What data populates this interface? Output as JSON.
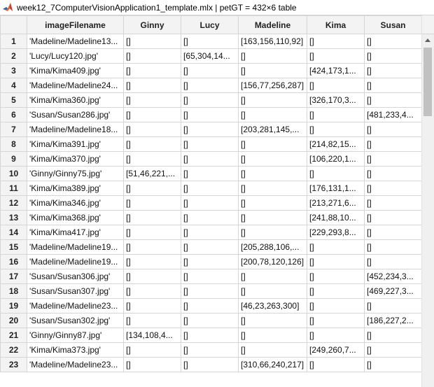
{
  "window": {
    "title": "week12_7ComputerVisionApplication1_template.mlx | petGT = 432×6 table"
  },
  "table": {
    "columns": [
      "imageFilename",
      "Ginny",
      "Lucy",
      "Madeline",
      "Kima",
      "Susan"
    ],
    "rows": [
      {
        "n": "1",
        "cells": [
          "'Madeline/Madeline13...",
          "[]",
          "[]",
          "[163,156,110,92]",
          "[]",
          "[]"
        ]
      },
      {
        "n": "2",
        "cells": [
          "'Lucy/Lucy120.jpg'",
          "[]",
          "[65,304,14...",
          "[]",
          "[]",
          "[]"
        ]
      },
      {
        "n": "3",
        "cells": [
          "'Kima/Kima409.jpg'",
          "[]",
          "[]",
          "[]",
          "[424,173,1...",
          "[]"
        ]
      },
      {
        "n": "4",
        "cells": [
          "'Madeline/Madeline24...",
          "[]",
          "[]",
          "[156,77,256,287]",
          "[]",
          "[]"
        ]
      },
      {
        "n": "5",
        "cells": [
          "'Kima/Kima360.jpg'",
          "[]",
          "[]",
          "[]",
          "[326,170,3...",
          "[]"
        ]
      },
      {
        "n": "6",
        "cells": [
          "'Susan/Susan286.jpg'",
          "[]",
          "[]",
          "[]",
          "[]",
          "[481,233,4..."
        ]
      },
      {
        "n": "7",
        "cells": [
          "'Madeline/Madeline18...",
          "[]",
          "[]",
          "[203,281,145,...",
          "[]",
          "[]"
        ]
      },
      {
        "n": "8",
        "cells": [
          "'Kima/Kima391.jpg'",
          "[]",
          "[]",
          "[]",
          "[214,82,15...",
          "[]"
        ]
      },
      {
        "n": "9",
        "cells": [
          "'Kima/Kima370.jpg'",
          "[]",
          "[]",
          "[]",
          "[106,220,1...",
          "[]"
        ]
      },
      {
        "n": "10",
        "cells": [
          "'Ginny/Ginny75.jpg'",
          "[51,46,221,...",
          "[]",
          "[]",
          "[]",
          "[]"
        ]
      },
      {
        "n": "11",
        "cells": [
          "'Kima/Kima389.jpg'",
          "[]",
          "[]",
          "[]",
          "[176,131,1...",
          "[]"
        ]
      },
      {
        "n": "12",
        "cells": [
          "'Kima/Kima346.jpg'",
          "[]",
          "[]",
          "[]",
          "[213,271,6...",
          "[]"
        ]
      },
      {
        "n": "13",
        "cells": [
          "'Kima/Kima368.jpg'",
          "[]",
          "[]",
          "[]",
          "[241,88,10...",
          "[]"
        ]
      },
      {
        "n": "14",
        "cells": [
          "'Kima/Kima417.jpg'",
          "[]",
          "[]",
          "[]",
          "[229,293,8...",
          "[]"
        ]
      },
      {
        "n": "15",
        "cells": [
          "'Madeline/Madeline19...",
          "[]",
          "[]",
          "[205,288,106,...",
          "[]",
          "[]"
        ]
      },
      {
        "n": "16",
        "cells": [
          "'Madeline/Madeline19...",
          "[]",
          "[]",
          "[200,78,120,126]",
          "[]",
          "[]"
        ]
      },
      {
        "n": "17",
        "cells": [
          "'Susan/Susan306.jpg'",
          "[]",
          "[]",
          "[]",
          "[]",
          "[452,234,3..."
        ]
      },
      {
        "n": "18",
        "cells": [
          "'Susan/Susan307.jpg'",
          "[]",
          "[]",
          "[]",
          "[]",
          "[469,227,3..."
        ]
      },
      {
        "n": "19",
        "cells": [
          "'Madeline/Madeline23...",
          "[]",
          "[]",
          "[46,23,263,300]",
          "[]",
          "[]"
        ]
      },
      {
        "n": "20",
        "cells": [
          "'Susan/Susan302.jpg'",
          "[]",
          "[]",
          "[]",
          "[]",
          "[186,227,2..."
        ]
      },
      {
        "n": "21",
        "cells": [
          "'Ginny/Ginny87.jpg'",
          "[134,108,4...",
          "[]",
          "[]",
          "[]",
          "[]"
        ]
      },
      {
        "n": "22",
        "cells": [
          "'Kima/Kima373.jpg'",
          "[]",
          "[]",
          "[]",
          "[249,260,7...",
          "[]"
        ]
      },
      {
        "n": "23",
        "cells": [
          "'Madeline/Madeline23...",
          "[]",
          "[]",
          "[310,66,240,217]",
          "[]",
          "[]"
        ]
      }
    ]
  },
  "icons": {
    "logo": "matlab-logo-icon",
    "scroll_up": "arrow-up-icon"
  }
}
